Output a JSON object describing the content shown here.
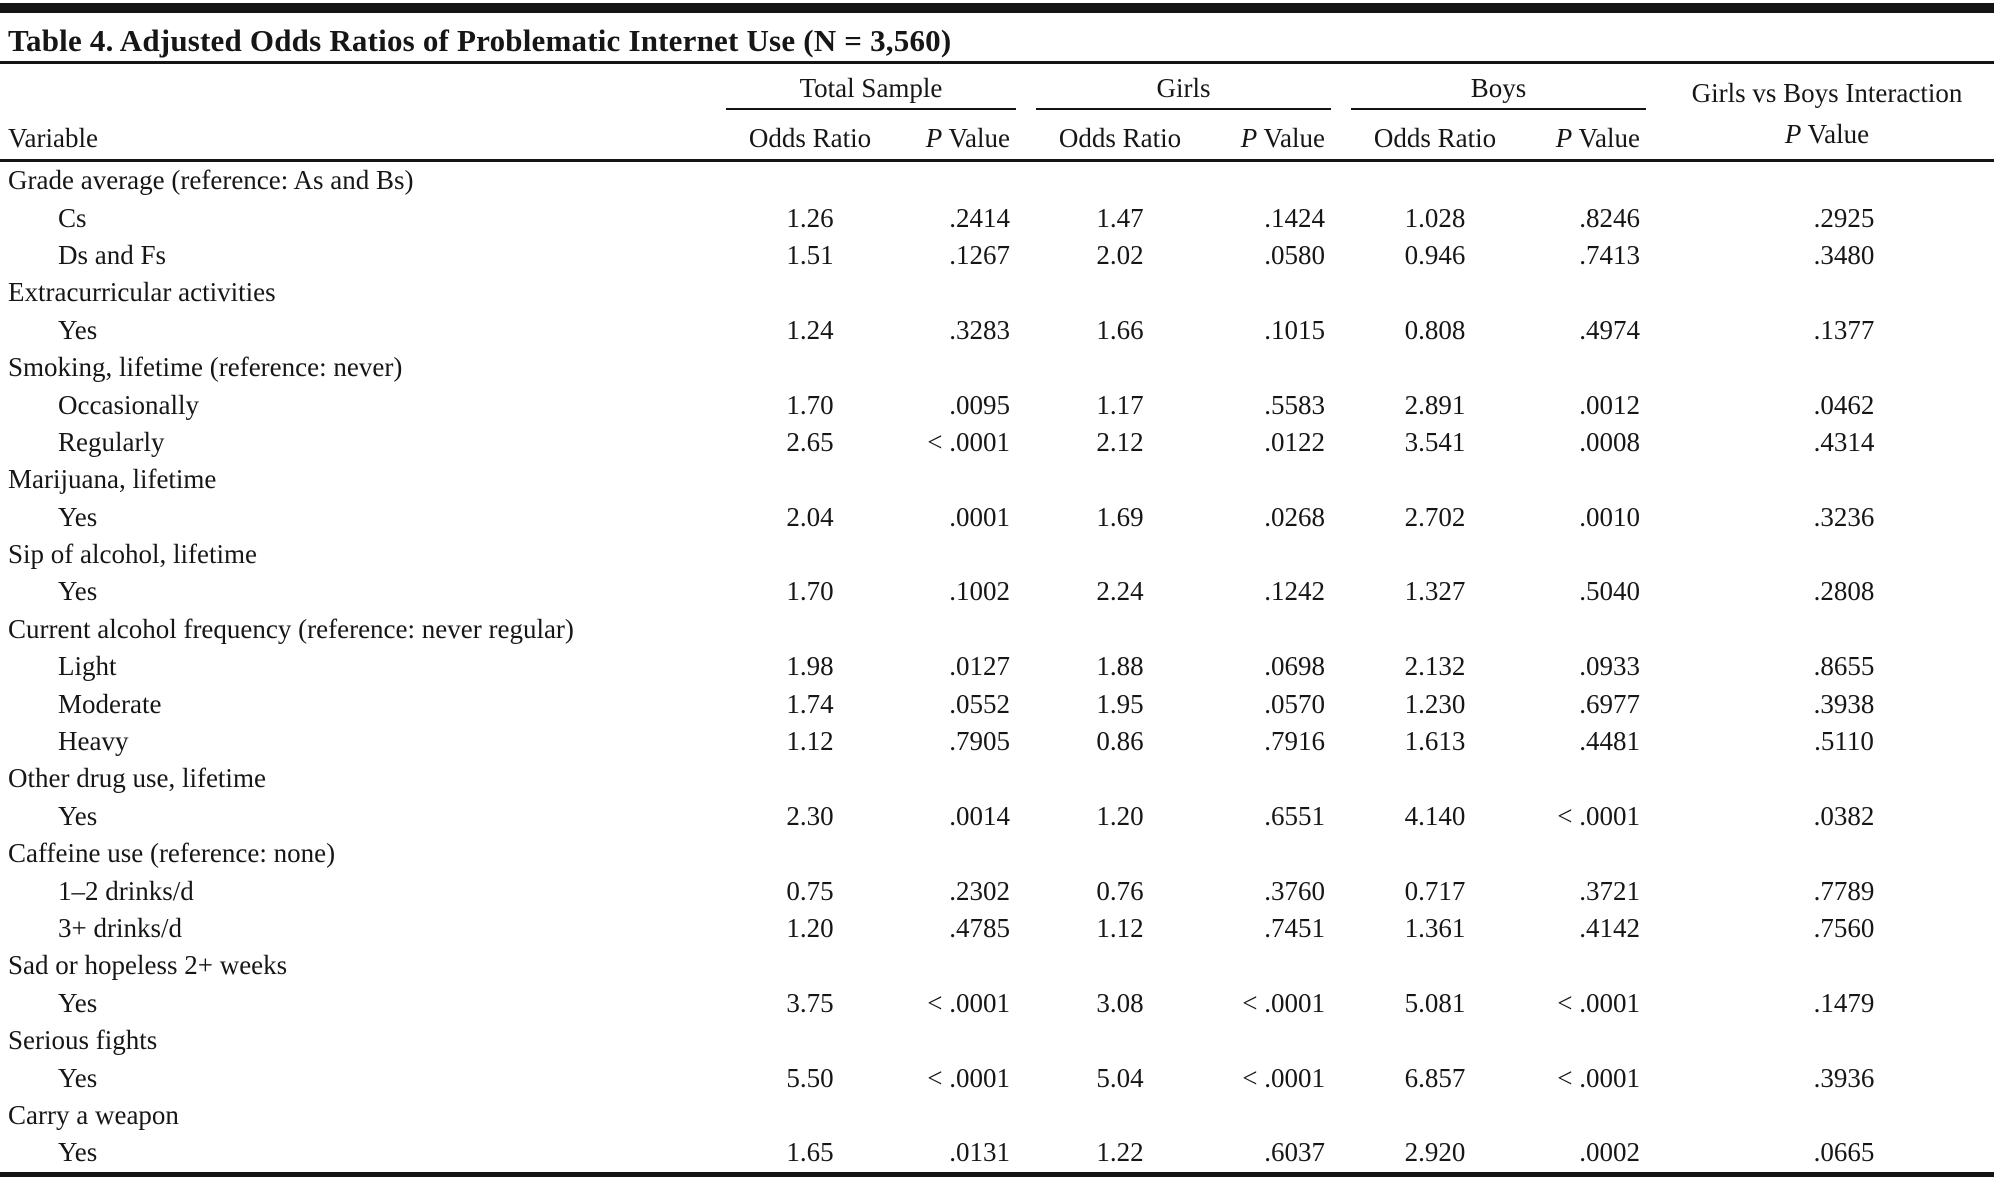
{
  "title": "Table 4. Adjusted Odds Ratios of Problematic Internet Use (N = 3,560)",
  "header": {
    "variable_label": "Variable",
    "groups": [
      {
        "label": "Total Sample"
      },
      {
        "label": "Girls"
      },
      {
        "label": "Boys"
      }
    ],
    "interaction": {
      "line1": "Girls vs Boys Interaction",
      "p": "P",
      "value_rest": " Value"
    },
    "sub": {
      "odds_label": "Odds Ratio",
      "p": "P",
      "value_rest": " Value"
    }
  },
  "rule_color": "#141414",
  "table": {
    "columns": [
      "Variable",
      "Total Sample Odds Ratio",
      "Total Sample P Value",
      "Girls Odds Ratio",
      "Girls P Value",
      "Boys Odds Ratio",
      "Boys P Value",
      "Girls vs Boys Interaction P Value"
    ],
    "rows": [
      {
        "type": "section",
        "label": "Grade average (reference: As and Bs)"
      },
      {
        "type": "data",
        "label": "Cs",
        "values": [
          "1.26",
          ".2414",
          "1.47",
          ".1424",
          "1.028",
          ".8246",
          ".2925"
        ]
      },
      {
        "type": "data",
        "label": "Ds and Fs",
        "values": [
          "1.51",
          ".1267",
          "2.02",
          ".0580",
          "0.946",
          ".7413",
          ".3480"
        ]
      },
      {
        "type": "section",
        "label": "Extracurricular activities"
      },
      {
        "type": "data",
        "label": "Yes",
        "values": [
          "1.24",
          ".3283",
          "1.66",
          ".1015",
          "0.808",
          ".4974",
          ".1377"
        ]
      },
      {
        "type": "section",
        "label": "Smoking, lifetime (reference: never)"
      },
      {
        "type": "data",
        "label": "Occasionally",
        "values": [
          "1.70",
          ".0095",
          "1.17",
          ".5583",
          "2.891",
          ".0012",
          ".0462"
        ]
      },
      {
        "type": "data",
        "label": "Regularly",
        "values": [
          "2.65",
          "< .0001",
          "2.12",
          ".0122",
          "3.541",
          ".0008",
          ".4314"
        ]
      },
      {
        "type": "section",
        "label": "Marijuana, lifetime"
      },
      {
        "type": "data",
        "label": "Yes",
        "values": [
          "2.04",
          ".0001",
          "1.69",
          ".0268",
          "2.702",
          ".0010",
          ".3236"
        ]
      },
      {
        "type": "section",
        "label": "Sip of alcohol, lifetime"
      },
      {
        "type": "data",
        "label": "Yes",
        "values": [
          "1.70",
          ".1002",
          "2.24",
          ".1242",
          "1.327",
          ".5040",
          ".2808"
        ]
      },
      {
        "type": "section",
        "label": "Current alcohol frequency (reference: never regular)"
      },
      {
        "type": "data",
        "label": "Light",
        "values": [
          "1.98",
          ".0127",
          "1.88",
          ".0698",
          "2.132",
          ".0933",
          ".8655"
        ]
      },
      {
        "type": "data",
        "label": "Moderate",
        "values": [
          "1.74",
          ".0552",
          "1.95",
          ".0570",
          "1.230",
          ".6977",
          ".3938"
        ]
      },
      {
        "type": "data",
        "label": "Heavy",
        "values": [
          "1.12",
          ".7905",
          "0.86",
          ".7916",
          "1.613",
          ".4481",
          ".5110"
        ]
      },
      {
        "type": "section",
        "label": "Other drug use, lifetime"
      },
      {
        "type": "data",
        "label": "Yes",
        "values": [
          "2.30",
          ".0014",
          "1.20",
          ".6551",
          "4.140",
          "< .0001",
          ".0382"
        ]
      },
      {
        "type": "section",
        "label": "Caffeine use (reference: none)"
      },
      {
        "type": "data",
        "label": "1–2 drinks/d",
        "values": [
          "0.75",
          ".2302",
          "0.76",
          ".3760",
          "0.717",
          ".3721",
          ".7789"
        ]
      },
      {
        "type": "data",
        "label": "3+ drinks/d",
        "values": [
          "1.20",
          ".4785",
          "1.12",
          ".7451",
          "1.361",
          ".4142",
          ".7560"
        ]
      },
      {
        "type": "section",
        "label": "Sad or hopeless 2+ weeks"
      },
      {
        "type": "data",
        "label": "Yes",
        "values": [
          "3.75",
          "< .0001",
          "3.08",
          "< .0001",
          "5.081",
          "< .0001",
          ".1479"
        ]
      },
      {
        "type": "section",
        "label": "Serious fights"
      },
      {
        "type": "data",
        "label": "Yes",
        "values": [
          "5.50",
          "< .0001",
          "5.04",
          "< .0001",
          "6.857",
          "< .0001",
          ".3936"
        ]
      },
      {
        "type": "section",
        "label": "Carry a weapon"
      },
      {
        "type": "data",
        "label": "Yes",
        "values": [
          "1.65",
          ".0131",
          "1.22",
          ".6037",
          "2.920",
          ".0002",
          ".0665"
        ]
      }
    ]
  }
}
